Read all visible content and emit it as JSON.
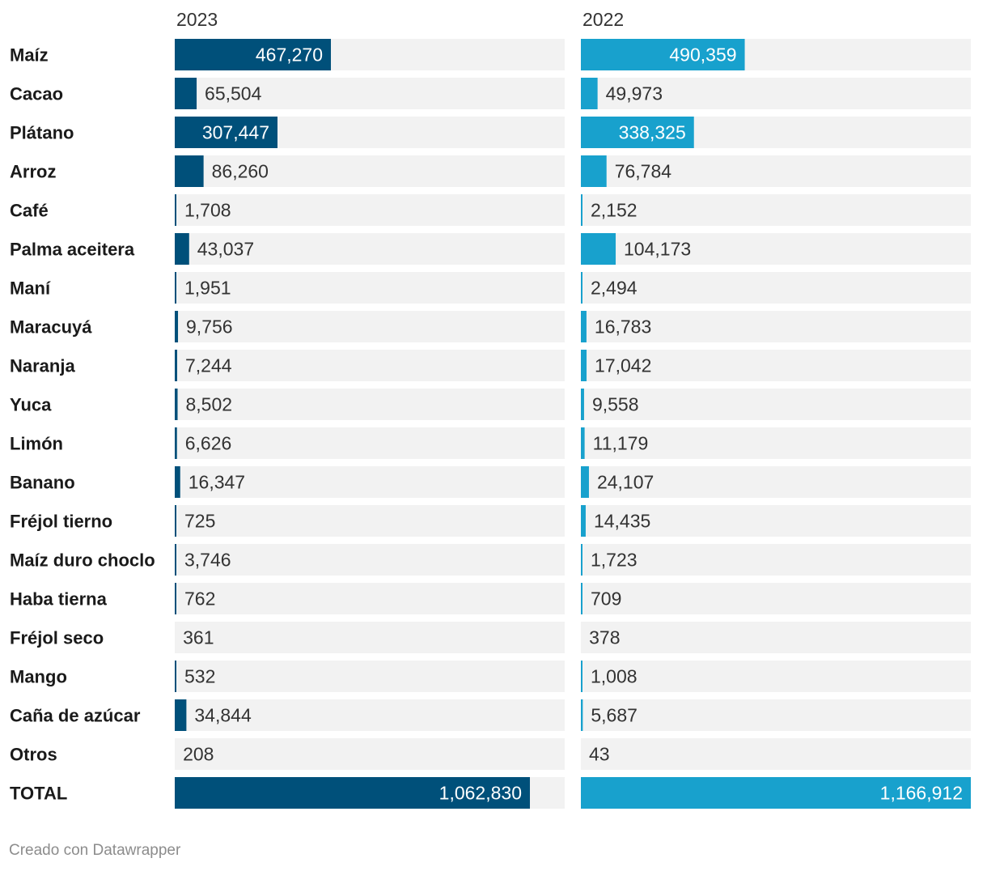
{
  "chart_data": {
    "type": "bar",
    "title": "",
    "xlabel": "",
    "ylabel": "",
    "categories": [
      "Maíz",
      "Cacao",
      "Plátano",
      "Arroz",
      "Café",
      "Palma aceitera",
      "Maní",
      "Maracuyá",
      "Naranja",
      "Yuca",
      "Limón",
      "Banano",
      "Fréjol tierno",
      "Maíz duro choclo",
      "Haba tierna",
      "Fréjol seco",
      "Mango",
      "Caña de azúcar",
      "Otros",
      "TOTAL"
    ],
    "series": [
      {
        "name": "2023",
        "color": "#00507a",
        "values": [
          467270,
          65504,
          307447,
          86260,
          1708,
          43037,
          1951,
          9756,
          7244,
          8502,
          6626,
          16347,
          725,
          3746,
          762,
          361,
          532,
          34844,
          208,
          1062830
        ],
        "labels": [
          "467,270",
          "65,504",
          "307,447",
          "86,260",
          "1,708",
          "43,037",
          "1,951",
          "9,756",
          "7,244",
          "8,502",
          "6,626",
          "16,347",
          "725",
          "3,746",
          "762",
          "361",
          "532",
          "34,844",
          "208",
          "1,062,830"
        ]
      },
      {
        "name": "2022",
        "color": "#18a1cd",
        "values": [
          490359,
          49973,
          338325,
          76784,
          2152,
          104173,
          2494,
          16783,
          17042,
          9558,
          11179,
          24107,
          14435,
          1723,
          709,
          378,
          1008,
          5687,
          43,
          1166912
        ],
        "labels": [
          "490,359",
          "49,973",
          "338,325",
          "76,784",
          "2,152",
          "104,173",
          "2,494",
          "16,783",
          "17,042",
          "9,558",
          "11,179",
          "24,107",
          "14,435",
          "1,723",
          "709",
          "378",
          "1,008",
          "5,687",
          "43",
          "1,166,912"
        ]
      }
    ],
    "xlim": [
      0,
      1166912
    ],
    "background_color": "#f2f2f2"
  },
  "footer": {
    "credit": "Creado con Datawrapper"
  }
}
